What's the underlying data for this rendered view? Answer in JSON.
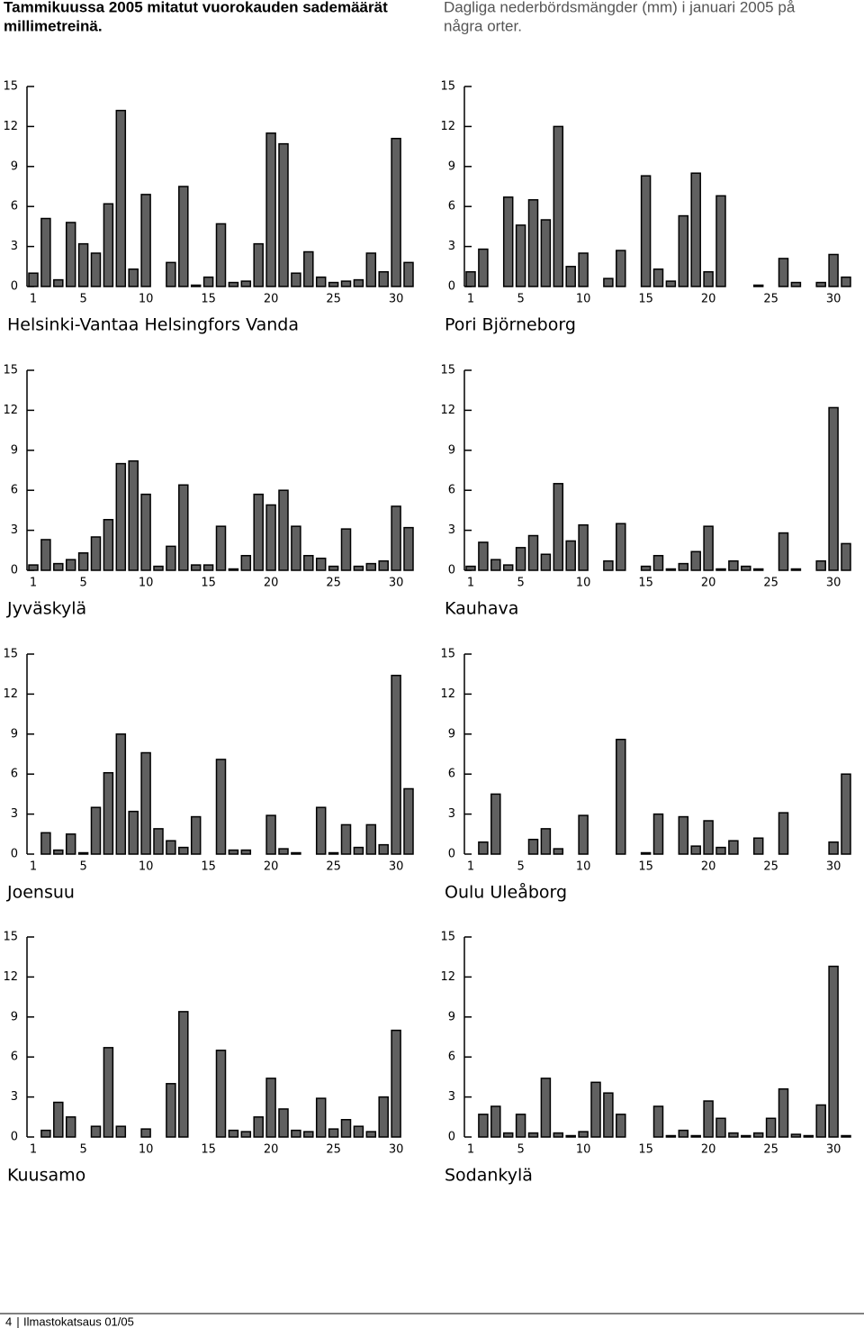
{
  "header": {
    "finnish": [
      "Tammikuussa 2005 mitatut vuorokauden sademäärät",
      "millimetreinä."
    ],
    "swedish": [
      "Dagliga nederbördsmängder (mm) i januari 2005 på",
      "några orter."
    ]
  },
  "chart_data": [
    {
      "type": "bar",
      "title": "Helsinki-Vantaa Helsingfors Vanda",
      "color": "#606060",
      "categories": [
        "1",
        null,
        null,
        null,
        "5",
        null,
        null,
        null,
        null,
        "10",
        null,
        null,
        null,
        null,
        "15",
        null,
        null,
        null,
        null,
        "20",
        null,
        null,
        null,
        null,
        "25",
        null,
        null,
        null,
        null,
        "30",
        null
      ],
      "values": [
        1.0,
        5.1,
        0.5,
        4.8,
        3.2,
        2.5,
        6.2,
        13.2,
        1.3,
        6.9,
        0,
        1.8,
        7.5,
        0.1,
        0.7,
        4.7,
        0.3,
        0.4,
        3.2,
        11.5,
        10.7,
        1.0,
        2.6,
        0.7,
        0.3,
        0.4,
        0.5,
        2.5,
        1.1,
        11.1,
        1.8
      ],
      "ylim": [
        0,
        15
      ],
      "yticks": [
        0,
        3,
        6,
        9,
        12,
        15
      ]
    },
    {
      "type": "bar",
      "title": "Pori Björneborg",
      "color": "#606060",
      "categories": [
        "1",
        null,
        null,
        null,
        "5",
        null,
        null,
        null,
        null,
        "10",
        null,
        null,
        null,
        null,
        "15",
        null,
        null,
        null,
        null,
        "20",
        null,
        null,
        null,
        null,
        "25",
        null,
        null,
        null,
        null,
        "30",
        null
      ],
      "values": [
        1.1,
        2.8,
        0,
        6.7,
        4.6,
        6.5,
        5.0,
        12.0,
        1.5,
        2.5,
        0,
        0.6,
        2.7,
        0,
        8.3,
        1.3,
        0.4,
        5.3,
        8.5,
        1.1,
        6.8,
        0,
        0,
        0.1,
        0,
        2.1,
        0.3,
        0,
        0.3,
        2.4,
        0.7
      ],
      "ylim": [
        0,
        15
      ],
      "yticks": [
        0,
        3,
        6,
        9,
        12,
        15
      ]
    },
    {
      "type": "bar",
      "title": "Jyväskylä",
      "color": "#606060",
      "categories": [
        "1",
        null,
        null,
        null,
        "5",
        null,
        null,
        null,
        null,
        "10",
        null,
        null,
        null,
        null,
        "15",
        null,
        null,
        null,
        null,
        "20",
        null,
        null,
        null,
        null,
        "25",
        null,
        null,
        null,
        null,
        "30",
        null
      ],
      "values": [
        0.4,
        2.3,
        0.5,
        0.8,
        1.3,
        2.5,
        3.8,
        8.0,
        8.2,
        5.7,
        0.3,
        1.8,
        6.4,
        0.4,
        0.4,
        3.3,
        0.1,
        1.1,
        5.7,
        4.9,
        6.0,
        3.3,
        1.1,
        0.9,
        0.3,
        3.1,
        0.3,
        0.5,
        0.7,
        4.8,
        3.2
      ],
      "ylim": [
        0,
        15
      ],
      "yticks": [
        0,
        3,
        6,
        9,
        12,
        15
      ]
    },
    {
      "type": "bar",
      "title": "Kauhava",
      "color": "#606060",
      "categories": [
        "1",
        null,
        null,
        null,
        "5",
        null,
        null,
        null,
        null,
        "10",
        null,
        null,
        null,
        null,
        "15",
        null,
        null,
        null,
        null,
        "20",
        null,
        null,
        null,
        null,
        "25",
        null,
        null,
        null,
        null,
        "30",
        null
      ],
      "values": [
        0.3,
        2.1,
        0.8,
        0.4,
        1.7,
        2.6,
        1.2,
        6.5,
        2.2,
        3.4,
        0,
        0.7,
        3.5,
        0,
        0.3,
        1.1,
        0.1,
        0.5,
        1.4,
        3.3,
        0.1,
        0.7,
        0.3,
        0.1,
        0,
        2.8,
        0.1,
        0,
        0.7,
        12.2,
        2.0
      ],
      "ylim": [
        0,
        15
      ],
      "yticks": [
        0,
        3,
        6,
        9,
        12,
        15
      ]
    },
    {
      "type": "bar",
      "title": "Joensuu",
      "color": "#606060",
      "categories": [
        "1",
        null,
        null,
        null,
        "5",
        null,
        null,
        null,
        null,
        "10",
        null,
        null,
        null,
        null,
        "15",
        null,
        null,
        null,
        null,
        "20",
        null,
        null,
        null,
        null,
        "25",
        null,
        null,
        null,
        null,
        "30",
        null
      ],
      "values": [
        0,
        1.6,
        0.3,
        1.5,
        0.1,
        3.5,
        6.1,
        9.0,
        3.2,
        7.6,
        1.9,
        1.0,
        0.5,
        2.8,
        0,
        7.1,
        0.3,
        0.3,
        0,
        2.9,
        0.4,
        0.1,
        0,
        3.5,
        0.1,
        2.2,
        0.5,
        2.2,
        0.7,
        13.4,
        4.9
      ],
      "ylim": [
        0,
        15
      ],
      "yticks": [
        0,
        3,
        6,
        9,
        12,
        15
      ]
    },
    {
      "type": "bar",
      "title": "Oulu Uleåborg",
      "color": "#606060",
      "categories": [
        "1",
        null,
        null,
        null,
        "5",
        null,
        null,
        null,
        null,
        "10",
        null,
        null,
        null,
        null,
        "15",
        null,
        null,
        null,
        null,
        "20",
        null,
        null,
        null,
        null,
        "25",
        null,
        null,
        null,
        null,
        "30",
        null
      ],
      "values": [
        0,
        0.9,
        4.5,
        0,
        0,
        1.1,
        1.9,
        0.4,
        0,
        2.9,
        0,
        0,
        8.6,
        0,
        0.1,
        3.0,
        0,
        2.8,
        0.6,
        2.5,
        0.5,
        1.0,
        0,
        1.2,
        0,
        3.1,
        0,
        0,
        0,
        0.9,
        6.0
      ],
      "ylim": [
        0,
        15
      ],
      "yticks": [
        0,
        3,
        6,
        9,
        12,
        15
      ]
    },
    {
      "type": "bar",
      "title": "Kuusamo",
      "color": "#606060",
      "categories": [
        "1",
        null,
        null,
        null,
        "5",
        null,
        null,
        null,
        null,
        "10",
        null,
        null,
        null,
        null,
        "15",
        null,
        null,
        null,
        null,
        "20",
        null,
        null,
        null,
        null,
        "25",
        null,
        null,
        null,
        null,
        "30",
        null
      ],
      "values": [
        0,
        0.5,
        2.6,
        1.5,
        0,
        0.8,
        6.7,
        0.8,
        0,
        0.6,
        0,
        4.0,
        9.4,
        0,
        0,
        6.5,
        0.5,
        0.4,
        1.5,
        4.4,
        2.1,
        0.5,
        0.4,
        2.9,
        0.6,
        1.3,
        0.8,
        0.4,
        3.0,
        8.0,
        0
      ],
      "ylim": [
        0,
        15
      ],
      "yticks": [
        0,
        3,
        6,
        9,
        12,
        15
      ]
    },
    {
      "type": "bar",
      "title": "Sodankylä",
      "color": "#606060",
      "categories": [
        "1",
        null,
        null,
        null,
        "5",
        null,
        null,
        null,
        null,
        "10",
        null,
        null,
        null,
        null,
        "15",
        null,
        null,
        null,
        null,
        "20",
        null,
        null,
        null,
        null,
        "25",
        null,
        null,
        null,
        null,
        "30",
        null
      ],
      "values": [
        0,
        1.7,
        2.3,
        0.3,
        1.7,
        0.3,
        4.4,
        0.3,
        0.1,
        0.4,
        4.1,
        3.3,
        1.7,
        0,
        0,
        2.3,
        0.1,
        0.5,
        0.1,
        2.7,
        1.4,
        0.3,
        0.1,
        0.3,
        1.4,
        3.6,
        0.2,
        0.1,
        2.4,
        12.8,
        0.1
      ],
      "ylim": [
        0,
        15
      ],
      "yticks": [
        0,
        3,
        6,
        9,
        12,
        15
      ]
    }
  ],
  "footer": {
    "page": "4",
    "publication": "Ilmastokatsaus 01/05"
  }
}
